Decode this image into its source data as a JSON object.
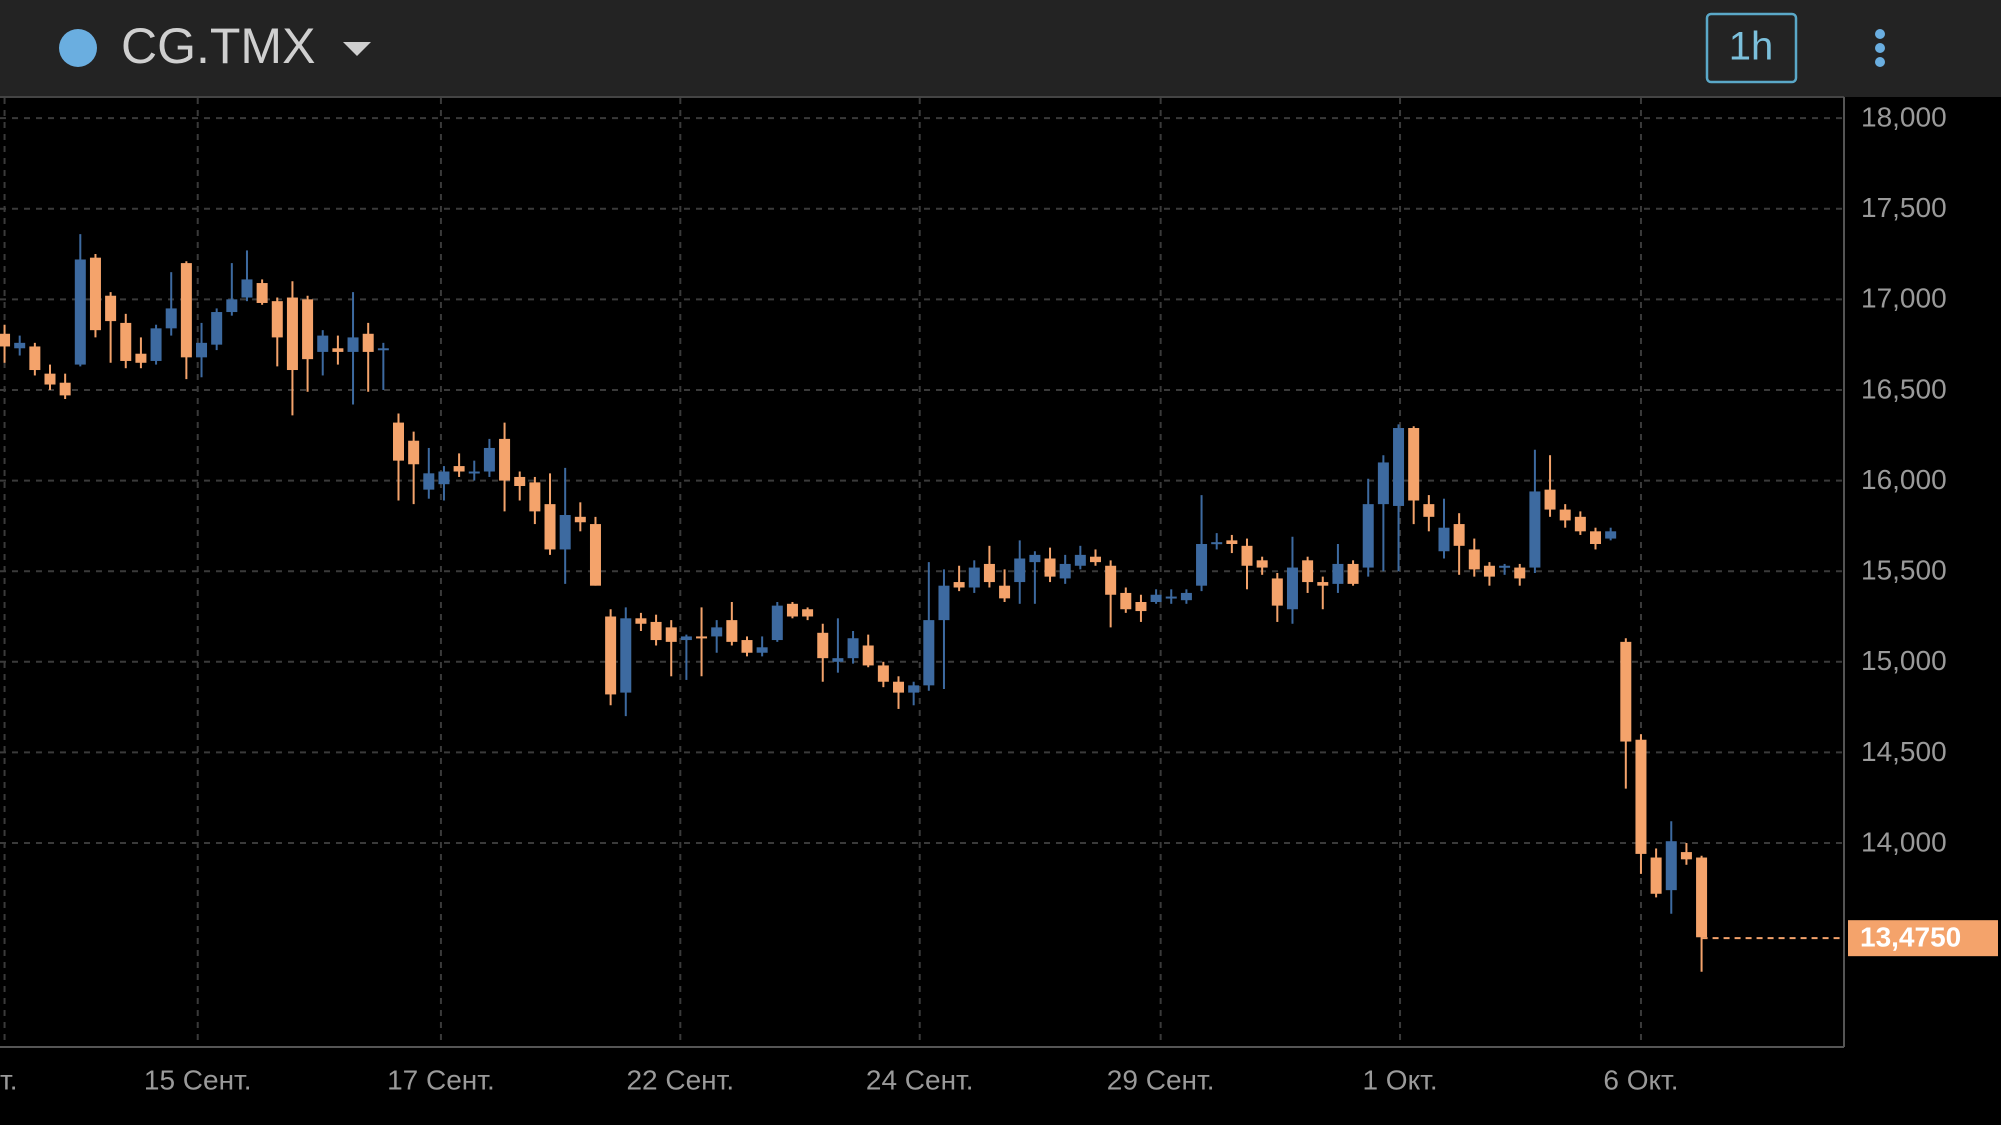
{
  "chart_data": {
    "type": "candlestick",
    "title": "CG.TMX",
    "interval": "1h",
    "up_color": "#3d6aa0",
    "down_color": "#f4a36b",
    "grid": true,
    "open": [
      16810,
      16730,
      16740,
      16590,
      16540,
      16640,
      17230,
      17020,
      16870,
      16700,
      16660,
      16840,
      17200,
      16680,
      16750,
      16930,
      17010,
      17090,
      16990,
      17010,
      17000,
      16710,
      16730,
      16710,
      16810,
      16720,
      16320,
      16220,
      15950,
      15980,
      16080,
      16040,
      16050,
      16230,
      16020,
      15990,
      15870,
      15620,
      15800,
      15760,
      15250,
      14830,
      15240,
      15220,
      15190,
      15120,
      15140,
      15140,
      15230,
      15120,
      15050,
      15120,
      15320,
      15290,
      15160,
      15000,
      15020,
      15090,
      14980,
      14890,
      14830,
      14870,
      15230,
      15440,
      15410,
      15540,
      15420,
      15440,
      15550,
      15570,
      15460,
      15530,
      15580,
      15530,
      15380,
      15330,
      15330,
      15350,
      15340,
      15420,
      15650,
      15670,
      15640,
      15560,
      15460,
      15290,
      15560,
      15440,
      15430,
      15540,
      15520,
      15870,
      15860,
      16290,
      15870,
      15610,
      15760,
      15620,
      15530,
      15520,
      15520,
      15520,
      15950,
      15840,
      15800,
      15720,
      15680,
      15110,
      14570,
      13920,
      13740,
      13950,
      13920
    ],
    "high": [
      16860,
      16800,
      16760,
      16640,
      16590,
      17360,
      17250,
      17040,
      16920,
      16790,
      16860,
      17150,
      17210,
      16870,
      16950,
      17200,
      17270,
      17110,
      17010,
      17100,
      17020,
      16830,
      16800,
      17040,
      16870,
      16760,
      16370,
      16270,
      16180,
      16080,
      16150,
      16110,
      16230,
      16320,
      16050,
      16020,
      16040,
      16070,
      15880,
      15800,
      15290,
      15300,
      15270,
      15260,
      15230,
      15150,
      15300,
      15230,
      15330,
      15140,
      15140,
      15330,
      15330,
      15300,
      15210,
      15240,
      15170,
      15150,
      15000,
      14920,
      14890,
      15550,
      15510,
      15530,
      15560,
      15640,
      15510,
      15670,
      15610,
      15630,
      15590,
      15640,
      15620,
      15560,
      15410,
      15370,
      15400,
      15400,
      15400,
      15920,
      15710,
      15700,
      15680,
      15580,
      15490,
      15690,
      15580,
      15470,
      15650,
      15560,
      16010,
      16140,
      16310,
      16300,
      15920,
      15900,
      15820,
      15680,
      15550,
      15540,
      15540,
      16170,
      16140,
      15870,
      15830,
      15740,
      15740,
      15130,
      14600,
      13970,
      14120,
      14000,
      13930
    ],
    "low": [
      16650,
      16690,
      16580,
      16500,
      16450,
      16630,
      16790,
      16650,
      16620,
      16620,
      16640,
      16800,
      16560,
      16570,
      16720,
      16910,
      16990,
      16970,
      16630,
      16360,
      16490,
      16580,
      16640,
      16420,
      16490,
      16500,
      15890,
      15870,
      15900,
      15890,
      16020,
      16000,
      16020,
      15830,
      15890,
      15760,
      15590,
      15430,
      15720,
      15420,
      14760,
      14700,
      15170,
      15090,
      14920,
      14900,
      14920,
      15050,
      15090,
      15030,
      15030,
      15110,
      15240,
      15230,
      14890,
      14940,
      14990,
      14970,
      14860,
      14740,
      14760,
      14840,
      14850,
      15390,
      15380,
      15410,
      15330,
      15320,
      15320,
      15440,
      15430,
      15510,
      15530,
      15190,
      15270,
      15220,
      15320,
      15320,
      15320,
      15390,
      15620,
      15600,
      15400,
      15480,
      15220,
      15210,
      15380,
      15290,
      15380,
      15420,
      15470,
      15500,
      15500,
      15760,
      15720,
      15570,
      15480,
      15470,
      15420,
      15480,
      15420,
      15490,
      15800,
      15740,
      15700,
      15620,
      15670,
      14300,
      13830,
      13700,
      13610,
      13880,
      13290
    ],
    "close": [
      16740,
      16760,
      16610,
      16530,
      16470,
      17220,
      16830,
      16880,
      16660,
      16650,
      16840,
      16950,
      16680,
      16760,
      16930,
      17000,
      17110,
      16980,
      16790,
      16610,
      16670,
      16800,
      16710,
      16790,
      16710,
      16730,
      16110,
      16090,
      16040,
      16050,
      16050,
      16050,
      16180,
      16000,
      15970,
      15830,
      15620,
      15810,
      15770,
      15420,
      14820,
      15240,
      15210,
      15120,
      15110,
      15140,
      15130,
      15190,
      15110,
      15050,
      15080,
      15310,
      15250,
      15250,
      15020,
      15020,
      15130,
      14980,
      14890,
      14830,
      14870,
      15230,
      15420,
      15410,
      15520,
      15440,
      15350,
      15570,
      15590,
      15470,
      15540,
      15590,
      15550,
      15370,
      15290,
      15280,
      15370,
      15360,
      15380,
      15650,
      15660,
      15650,
      15530,
      15520,
      15310,
      15520,
      15440,
      15420,
      15540,
      15430,
      15870,
      16100,
      16290,
      15890,
      15800,
      15740,
      15640,
      15510,
      15470,
      15530,
      15460,
      15940,
      15840,
      15780,
      15720,
      15650,
      15720,
      14560,
      13940,
      13720,
      14010,
      13910,
      13480
    ],
    "xlim": [
      -0.3,
      121.4
    ],
    "xticks": [
      {
        "value": 0,
        "label": "т."
      },
      {
        "value": 12.75,
        "label": "15 Сент."
      },
      {
        "value": 28.8,
        "label": "17 Сент."
      },
      {
        "value": 44.6,
        "label": "22 Сент."
      },
      {
        "value": 60.4,
        "label": "24 Сент."
      },
      {
        "value": 76.3,
        "label": "29 Сент."
      },
      {
        "value": 92.1,
        "label": "1 Окт."
      },
      {
        "value": 108,
        "label": "6 Окт."
      }
    ],
    "ylim": [
      12880,
      18100
    ],
    "yticks": [
      {
        "value": 18000,
        "label": "18,000"
      },
      {
        "value": 17500,
        "label": "17,500"
      },
      {
        "value": 17000,
        "label": "17,000"
      },
      {
        "value": 16500,
        "label": "16,500"
      },
      {
        "value": 16000,
        "label": "16,000"
      },
      {
        "value": 15500,
        "label": "15,500"
      },
      {
        "value": 15000,
        "label": "15,000"
      },
      {
        "value": 14500,
        "label": "14,500"
      },
      {
        "value": 14000,
        "label": "14,000"
      }
    ],
    "last_price": {
      "value": 13475,
      "label": "13,4750"
    }
  }
}
